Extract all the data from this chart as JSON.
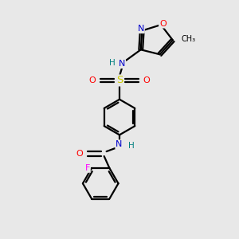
{
  "bg_color": "#e8e8e8",
  "bond_color": "#000000",
  "atom_colors": {
    "N": "#0000cc",
    "O": "#ff0000",
    "S": "#cccc00",
    "F": "#ff00ff",
    "H": "#008080",
    "C": "#000000"
  },
  "font_size": 8.0,
  "line_width": 1.6
}
